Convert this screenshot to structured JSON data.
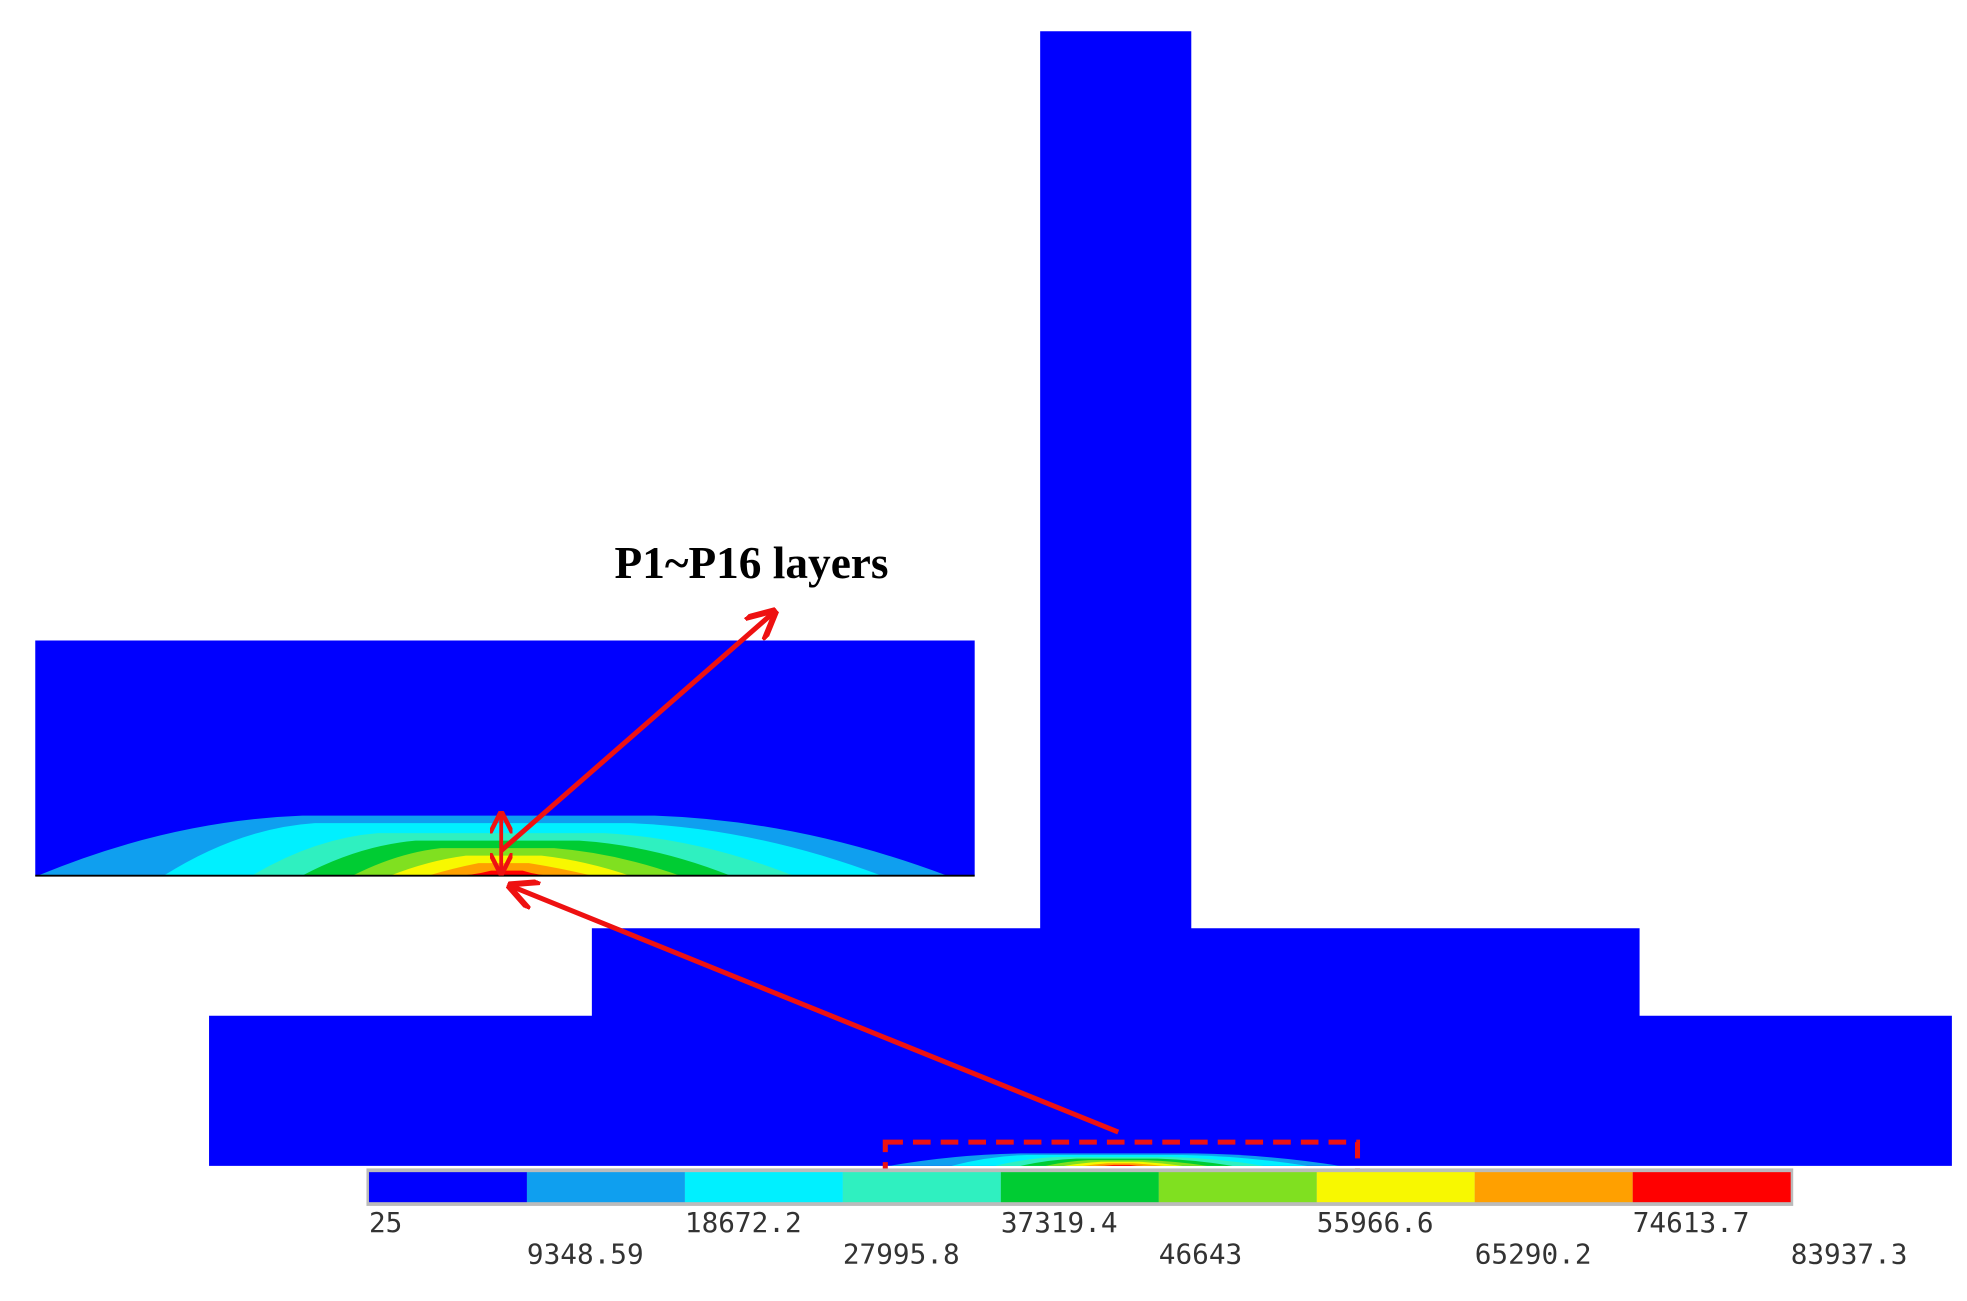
{
  "annotation": "P1~P16 layers",
  "colorbar": {
    "levels": [
      25,
      9348.59,
      18672.2,
      27995.8,
      37319.4,
      46643,
      55966.6,
      65290.2,
      74613.7,
      83937.3
    ],
    "colors": [
      "#0000ff",
      "#0f9fef",
      "#00f0ff",
      "#2ff0c0",
      "#00cc33",
      "#80e020",
      "#f8f800",
      "#ffa000",
      "#ff0000"
    ]
  }
}
